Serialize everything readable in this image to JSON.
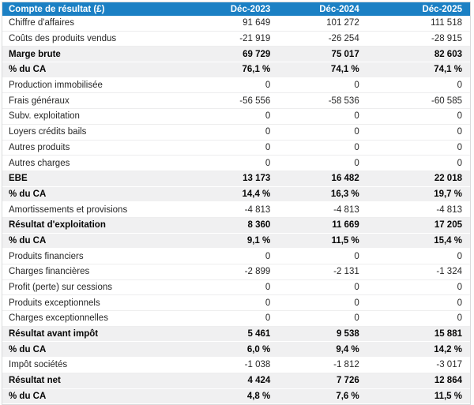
{
  "table": {
    "title": "Compte de résultat (£)",
    "columns": [
      "Déc-2023",
      "Déc-2024",
      "Déc-2025"
    ],
    "rows": [
      {
        "label": "Chiffre d'affaires",
        "values": [
          "91 649",
          "101 272",
          "111 518"
        ],
        "bold": false
      },
      {
        "label": "Coûts des produits vendus",
        "values": [
          "-21 919",
          "-26 254",
          "-28 915"
        ],
        "bold": false
      },
      {
        "label": "Marge brute",
        "values": [
          "69 729",
          "75 017",
          "82 603"
        ],
        "bold": true
      },
      {
        "label": "% du CA",
        "values": [
          "76,1 %",
          "74,1 %",
          "74,1 %"
        ],
        "bold": true
      },
      {
        "label": "Production immobilisée",
        "values": [
          "0",
          "0",
          "0"
        ],
        "bold": false
      },
      {
        "label": "Frais généraux",
        "values": [
          "-56 556",
          "-58 536",
          "-60 585"
        ],
        "bold": false
      },
      {
        "label": "Subv. exploitation",
        "values": [
          "0",
          "0",
          "0"
        ],
        "bold": false
      },
      {
        "label": "Loyers crédits bails",
        "values": [
          "0",
          "0",
          "0"
        ],
        "bold": false
      },
      {
        "label": "Autres produits",
        "values": [
          "0",
          "0",
          "0"
        ],
        "bold": false
      },
      {
        "label": "Autres charges",
        "values": [
          "0",
          "0",
          "0"
        ],
        "bold": false
      },
      {
        "label": "EBE",
        "values": [
          "13 173",
          "16 482",
          "22 018"
        ],
        "bold": true
      },
      {
        "label": "% du CA",
        "values": [
          "14,4 %",
          "16,3 %",
          "19,7 %"
        ],
        "bold": true
      },
      {
        "label": "Amortissements et provisions",
        "values": [
          "-4 813",
          "-4 813",
          "-4 813"
        ],
        "bold": false
      },
      {
        "label": "Résultat d'exploitation",
        "values": [
          "8 360",
          "11 669",
          "17 205"
        ],
        "bold": true
      },
      {
        "label": "% du CA",
        "values": [
          "9,1 %",
          "11,5 %",
          "15,4 %"
        ],
        "bold": true
      },
      {
        "label": "Produits financiers",
        "values": [
          "0",
          "0",
          "0"
        ],
        "bold": false
      },
      {
        "label": "Charges financières",
        "values": [
          "-2 899",
          "-2 131",
          "-1 324"
        ],
        "bold": false
      },
      {
        "label": "Profit (perte) sur cessions",
        "values": [
          "0",
          "0",
          "0"
        ],
        "bold": false
      },
      {
        "label": "Produits exceptionnels",
        "values": [
          "0",
          "0",
          "0"
        ],
        "bold": false
      },
      {
        "label": "Charges exceptionnelles",
        "values": [
          "0",
          "0",
          "0"
        ],
        "bold": false
      },
      {
        "label": "Résultat avant impôt",
        "values": [
          "5 461",
          "9 538",
          "15 881"
        ],
        "bold": true
      },
      {
        "label": "% du CA",
        "values": [
          "6,0 %",
          "9,4 %",
          "14,2 %"
        ],
        "bold": true
      },
      {
        "label": "Impôt sociétés",
        "values": [
          "-1 038",
          "-1 812",
          "-3 017"
        ],
        "bold": false
      },
      {
        "label": "Résultat net",
        "values": [
          "4 424",
          "7 726",
          "12 864"
        ],
        "bold": true
      },
      {
        "label": "% du CA",
        "values": [
          "4,8 %",
          "7,6 %",
          "11,5 %"
        ],
        "bold": true
      }
    ]
  },
  "colors": {
    "header_bg": "#1b80c4",
    "header_text": "#ffffff",
    "emphasis_row_bg": "#f0f0f1",
    "frame_border": "#d9dbdc"
  }
}
